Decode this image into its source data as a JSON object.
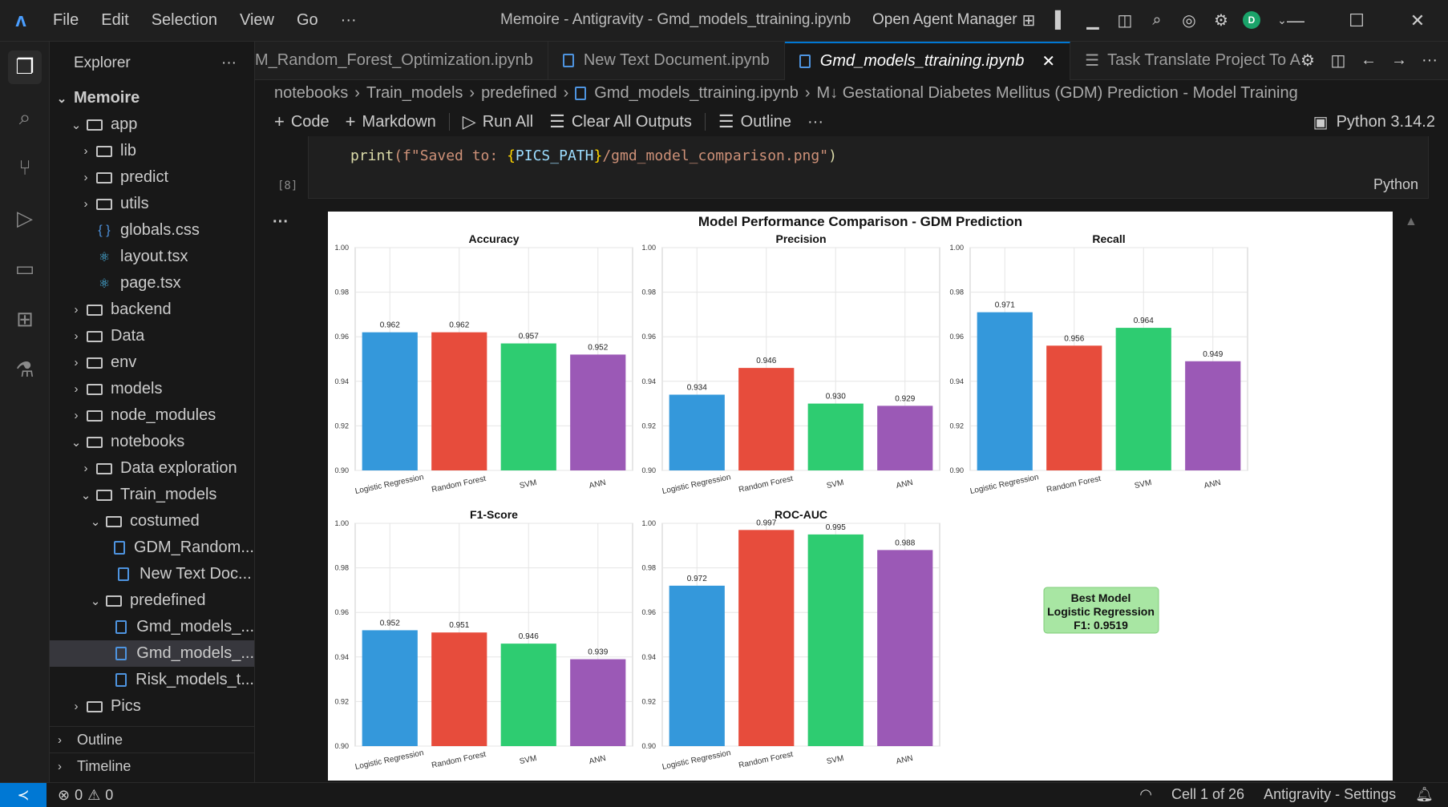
{
  "titlebar": {
    "menu": [
      "File",
      "Edit",
      "Selection",
      "View",
      "Go",
      "···"
    ],
    "window_title": "Memoire - Antigravity - Gmd_models_ttraining.ipynb",
    "agent_manager": "Open Agent Manager",
    "avatar_letter": "D"
  },
  "sidebar": {
    "title": "Explorer",
    "more": "···",
    "tree": [
      {
        "label": "Memoire",
        "depth": 0,
        "type": "root",
        "chev": "⌄"
      },
      {
        "label": "app",
        "depth": 1,
        "type": "folder",
        "chev": "⌄"
      },
      {
        "label": "lib",
        "depth": 2,
        "type": "folder",
        "chev": "›"
      },
      {
        "label": "predict",
        "depth": 2,
        "type": "folder",
        "chev": "›"
      },
      {
        "label": "utils",
        "depth": 2,
        "type": "folder",
        "chev": "›"
      },
      {
        "label": "globals.css",
        "depth": 2,
        "type": "css",
        "chev": ""
      },
      {
        "label": "layout.tsx",
        "depth": 2,
        "type": "react",
        "chev": ""
      },
      {
        "label": "page.tsx",
        "depth": 2,
        "type": "react",
        "chev": ""
      },
      {
        "label": "backend",
        "depth": 1,
        "type": "folder",
        "chev": "›"
      },
      {
        "label": "Data",
        "depth": 1,
        "type": "folder",
        "chev": "›"
      },
      {
        "label": "env",
        "depth": 1,
        "type": "folder",
        "chev": "›"
      },
      {
        "label": "models",
        "depth": 1,
        "type": "folder",
        "chev": "›"
      },
      {
        "label": "node_modules",
        "depth": 1,
        "type": "folder",
        "chev": "›"
      },
      {
        "label": "notebooks",
        "depth": 1,
        "type": "folder",
        "chev": "⌄"
      },
      {
        "label": "Data exploration",
        "depth": 2,
        "type": "folder",
        "chev": "›"
      },
      {
        "label": "Train_models",
        "depth": 2,
        "type": "folder",
        "chev": "⌄"
      },
      {
        "label": "costumed",
        "depth": 3,
        "type": "folder",
        "chev": "⌄"
      },
      {
        "label": "GDM_Random...",
        "depth": 4,
        "type": "notebook",
        "chev": ""
      },
      {
        "label": "New Text Doc...",
        "depth": 4,
        "type": "notebook",
        "chev": ""
      },
      {
        "label": "predefined",
        "depth": 3,
        "type": "folder",
        "chev": "⌄"
      },
      {
        "label": "Gmd_models_...",
        "depth": 4,
        "type": "notebook",
        "chev": ""
      },
      {
        "label": "Gmd_models_...",
        "depth": 4,
        "type": "notebook",
        "chev": "",
        "selected": true
      },
      {
        "label": "Risk_models_t...",
        "depth": 4,
        "type": "notebook",
        "chev": ""
      },
      {
        "label": "Pics",
        "depth": 1,
        "type": "folder",
        "chev": "›"
      }
    ],
    "sections": [
      {
        "label": "Outline"
      },
      {
        "label": "Timeline"
      }
    ]
  },
  "tabs": [
    {
      "label": "M_Random_Forest_Optimization.ipynb",
      "active": false,
      "icon": false
    },
    {
      "label": "New Text Document.ipynb",
      "active": false,
      "icon": true
    },
    {
      "label": "Gmd_models_ttraining.ipynb",
      "active": true,
      "icon": true
    },
    {
      "label": "Task  Translate Project To A",
      "active": false,
      "icon": false
    }
  ],
  "breadcrumb": [
    "notebooks",
    "Train_models",
    "predefined",
    "Gmd_models_ttraining.ipynb",
    "M↓ Gestational Diabetes Mellitus (GDM) Prediction - Model Training"
  ],
  "toolbar": {
    "code": "Code",
    "markdown": "Markdown",
    "run_all": "Run All",
    "clear_outputs": "Clear All Outputs",
    "outline": "Outline",
    "more": "···",
    "kernel": "Python 3.14.2"
  },
  "cell": {
    "code_print": "print",
    "code_prefix": "(f\"Saved to: ",
    "code_brace_open": "{",
    "code_var": "PICS_PATH",
    "code_brace_close": "}",
    "code_suffix": "/gmd_model_comparison.png\"",
    "code_close": ")",
    "language": "Python",
    "exec_count": "[8]",
    "output_more": "···"
  },
  "chart_data": {
    "type": "bar",
    "title": "Model Performance Comparison - GDM Prediction",
    "categories": [
      "Logistic Regression",
      "Random Forest",
      "SVM",
      "ANN"
    ],
    "colors": [
      "#3498db",
      "#e74c3c",
      "#2ecc71",
      "#9b59b6"
    ],
    "subplots": [
      {
        "title": "Accuracy",
        "values": [
          0.962,
          0.962,
          0.957,
          0.952
        ],
        "ylim": [
          0.9,
          1.0
        ],
        "yticks": [
          "0.90",
          "0.92",
          "0.94",
          "0.96",
          "0.98",
          "1.00"
        ]
      },
      {
        "title": "Precision",
        "values": [
          0.934,
          0.946,
          0.93,
          0.929
        ],
        "ylim": [
          0.9,
          1.0
        ],
        "yticks": [
          "0.90",
          "0.92",
          "0.94",
          "0.96",
          "0.98",
          "1.00"
        ]
      },
      {
        "title": "Recall",
        "values": [
          0.971,
          0.956,
          0.964,
          0.949
        ],
        "ylim": [
          0.9,
          1.0
        ],
        "yticks": [
          "0.90",
          "0.92",
          "0.94",
          "0.96",
          "0.98",
          "1.00"
        ]
      },
      {
        "title": "F1-Score",
        "values": [
          0.952,
          0.951,
          0.946,
          0.939
        ],
        "ylim": [
          0.9,
          1.0
        ],
        "yticks": [
          "0.90",
          "0.92",
          "0.94",
          "0.96",
          "0.98",
          "1.00"
        ]
      },
      {
        "title": "ROC-AUC",
        "values": [
          0.972,
          0.997,
          0.995,
          0.988
        ],
        "ylim": [
          0.9,
          1.0
        ],
        "yticks": [
          "0.90",
          "0.92",
          "0.94",
          "0.96",
          "0.98",
          "1.00"
        ]
      }
    ],
    "best_model": {
      "line1": "Best Model",
      "line2": "Logistic Regression",
      "line3": "F1: 0.9519"
    }
  },
  "statusbar": {
    "errors": "0",
    "warnings": "0",
    "cell": "Cell 1 of 26",
    "settings": "Antigravity - Settings"
  }
}
